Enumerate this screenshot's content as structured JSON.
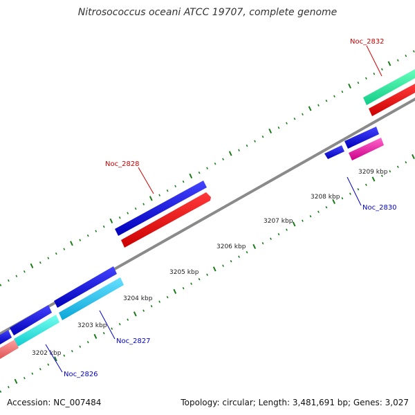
{
  "title": "Nitrosococcus oceani ATCC 19707, complete genome",
  "footer": {
    "accession": "Accession: NC_007484",
    "summary": "Topology: circular; Length: 3,481,691 bp; Genes: 3,027"
  },
  "colors": {
    "backbone": "#8a8a8a",
    "tick": "#1a7a1a",
    "label_red": "#cc0000",
    "label_blue": "#0000cc",
    "gene_blue": "#0000dd",
    "gene_red": "#ee0000",
    "gene_cyan": "#11c6f0",
    "gene_aqua": "#22eedd",
    "gene_salmon": "#ee7777",
    "gene_teal": "#22ee99",
    "gene_pink": "#ee11aa"
  },
  "kbp_labels": [
    "3202 kbp",
    "3203 kbp",
    "3204 kbp",
    "3205 kbp",
    "3206 kbp",
    "3207 kbp",
    "3208 kbp",
    "3209 kbp"
  ],
  "gene_labels": [
    {
      "text": "Noc_2828",
      "color": "label_red"
    },
    {
      "text": "Noc_2832",
      "color": "label_red"
    },
    {
      "text": "Noc_2830",
      "color": "label_blue"
    },
    {
      "text": "Noc_2827",
      "color": "label_blue"
    },
    {
      "text": "Noc_2826",
      "color": "label_blue"
    }
  ]
}
